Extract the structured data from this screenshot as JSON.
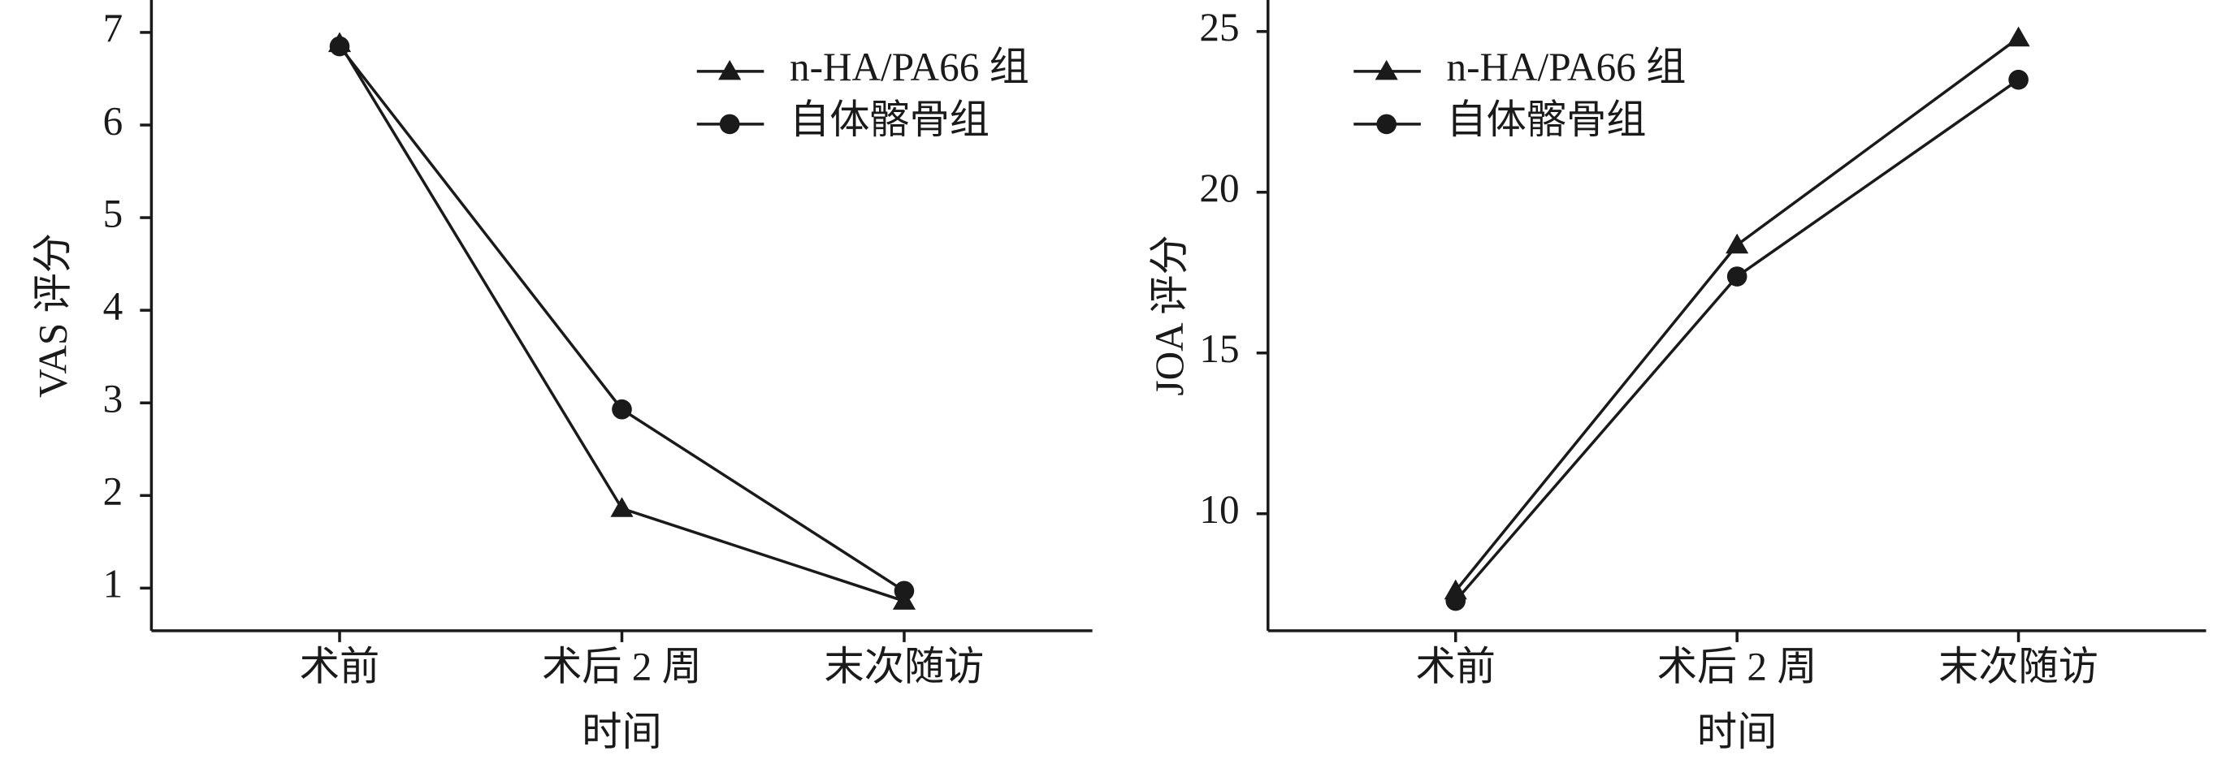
{
  "chart_data": [
    {
      "type": "line",
      "xlabel": "时间",
      "ylabel": "VAS 评分",
      "categories": [
        "术前",
        "术后 2 周",
        "末次随访"
      ],
      "series": [
        {
          "name": "n-HA/PA66 组",
          "color": "#1a1a1a",
          "marker": "triangle",
          "values": [
            6.88,
            1.86,
            0.86
          ]
        },
        {
          "name": "自体髂骨组",
          "color": "#1a1a1a",
          "marker": "circle",
          "values": [
            6.85,
            2.93,
            0.97
          ]
        }
      ],
      "ylim": [
        0.54,
        7.35
      ],
      "yticks": [
        1,
        2,
        3,
        4,
        5,
        6,
        7
      ],
      "legend": "upper right"
    },
    {
      "type": "line",
      "xlabel": "时间",
      "ylabel": "JOA 评分",
      "categories": [
        "术前",
        "术后 2 周",
        "末次随访"
      ],
      "series": [
        {
          "name": "n-HA/PA66 组",
          "color": "#1a1a1a",
          "marker": "triangle",
          "values": [
            7.6,
            18.36,
            24.8
          ]
        },
        {
          "name": "自体髂骨组",
          "color": "#1a1a1a",
          "marker": "circle",
          "values": [
            7.29,
            17.38,
            23.5
          ]
        }
      ],
      "ylim": [
        6.36,
        25.98
      ],
      "yticks": [
        10,
        15,
        20,
        25
      ],
      "legend": "upper left"
    }
  ]
}
